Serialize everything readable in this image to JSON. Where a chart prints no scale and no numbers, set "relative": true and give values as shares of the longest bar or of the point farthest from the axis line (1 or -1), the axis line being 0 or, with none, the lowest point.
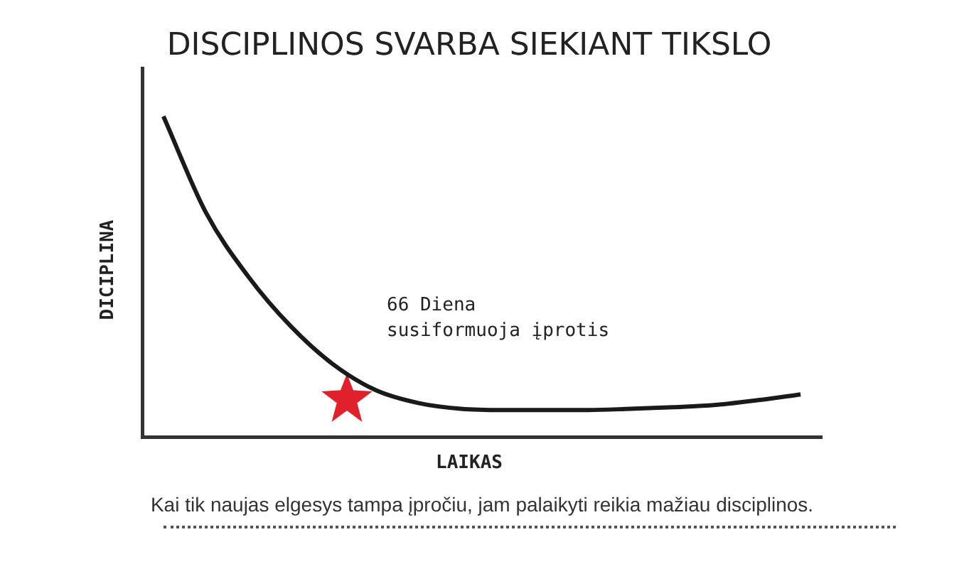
{
  "chart_data": {
    "type": "line",
    "title": "DISCIPLINOS SVARBA SIEKIANT TIKSLO",
    "xlabel": "LAIKAS",
    "ylabel": "DICIPLINA",
    "relative": true,
    "grid": false,
    "legend": false,
    "marker": "none",
    "line_style": "solid",
    "categories": [
      null,
      null,
      null,
      null,
      null,
      null,
      null,
      null,
      null,
      null,
      null,
      null,
      null,
      null,
      null,
      null
    ],
    "series": [
      {
        "color": "#1a1a1a",
        "values": [
          1.0,
          0.7,
          0.5,
          0.345,
          0.226,
          0.146,
          0.106,
          0.088,
          0.084,
          0.084,
          0.084,
          0.088,
          0.093,
          0.1,
          0.115,
          0.133
        ]
      }
    ],
    "annotations": [
      "66 Diena\nsusiformuoja įprotis",
      "Kai tik naujas elgesys tampa įpročiu, jam palaikyti reikia mažiau disciplinos."
    ]
  }
}
